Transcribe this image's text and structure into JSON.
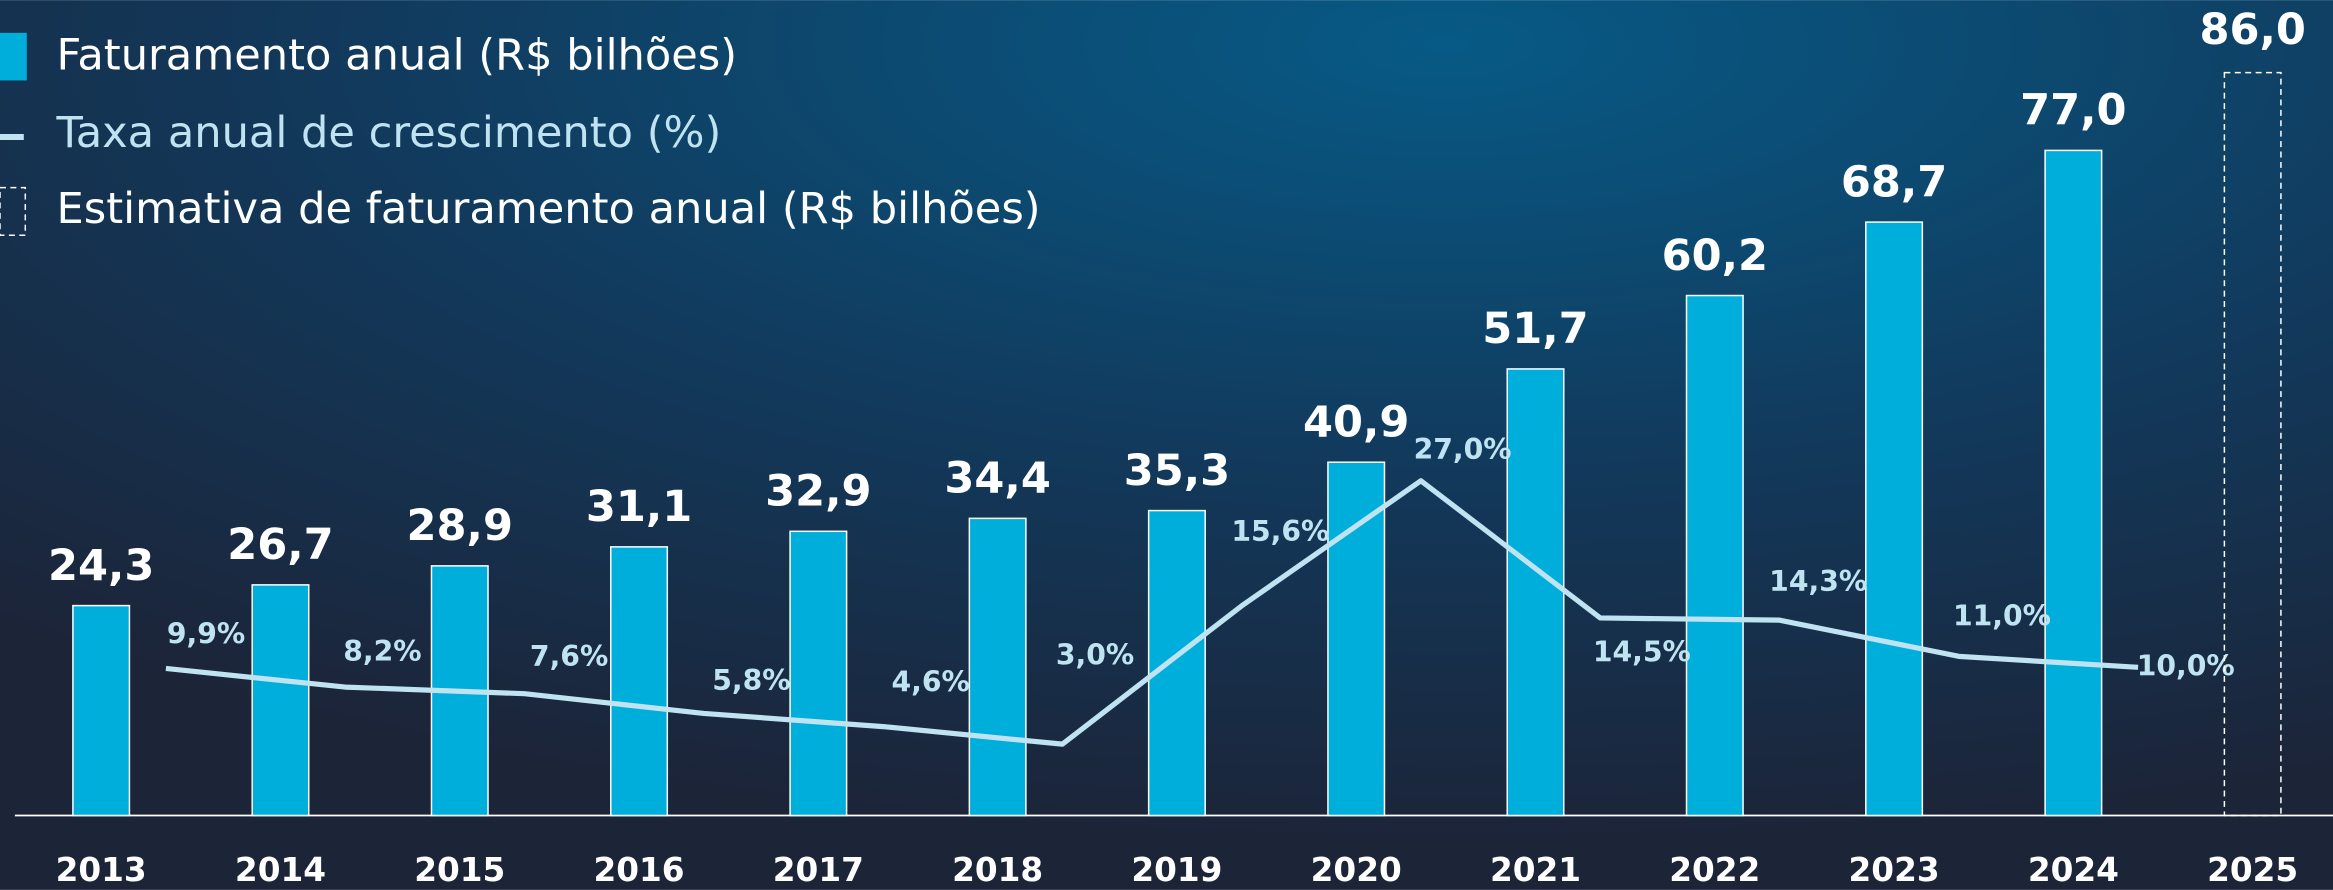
{
  "chart_data": {
    "type": "bar",
    "categories": [
      "2013",
      "2014",
      "2015",
      "2016",
      "2017",
      "2018",
      "2019",
      "2020",
      "2021",
      "2022",
      "2023",
      "2024",
      "2025"
    ],
    "series": [
      {
        "name": "Faturamento anual (R$ bilhões)",
        "type": "bar",
        "color": "#00aedb",
        "values": [
          24.3,
          26.7,
          28.9,
          31.1,
          32.9,
          34.4,
          35.3,
          40.9,
          51.7,
          60.2,
          68.7,
          77.0,
          null
        ],
        "value_labels": [
          "24,3",
          "26,7",
          "28,9",
          "31,1",
          "32,9",
          "34,4",
          "35,3",
          "40,9",
          "51,7",
          "60,2",
          "68,7",
          "77,0",
          null
        ]
      },
      {
        "name": "Taxa anual de crescimento (%)",
        "type": "line",
        "axis": "y2",
        "color": "#bfe3f0",
        "values": [
          null,
          9.9,
          8.2,
          7.6,
          5.8,
          4.6,
          3.0,
          15.6,
          27.0,
          14.5,
          14.3,
          11.0,
          10.0
        ],
        "value_labels": [
          null,
          "9,9%",
          "8,2%",
          "7,6%",
          "5,8%",
          "4,6%",
          "3,0%",
          "15,6%",
          "27,0%",
          "14,5%",
          "14,3%",
          "11,0%",
          "10,0%"
        ]
      },
      {
        "name": "Estimativa de faturamento anual (R$ bilhões)",
        "type": "estimate",
        "color": "#ffffff",
        "values": [
          null,
          null,
          null,
          null,
          null,
          null,
          null,
          null,
          null,
          null,
          null,
          null,
          86.0
        ],
        "value_labels": [
          null,
          null,
          null,
          null,
          null,
          null,
          null,
          null,
          null,
          null,
          null,
          null,
          "86,0"
        ]
      }
    ],
    "ylim": [
      0,
      94.4
    ],
    "y2lim": [
      -3.5,
      70.8
    ]
  }
}
